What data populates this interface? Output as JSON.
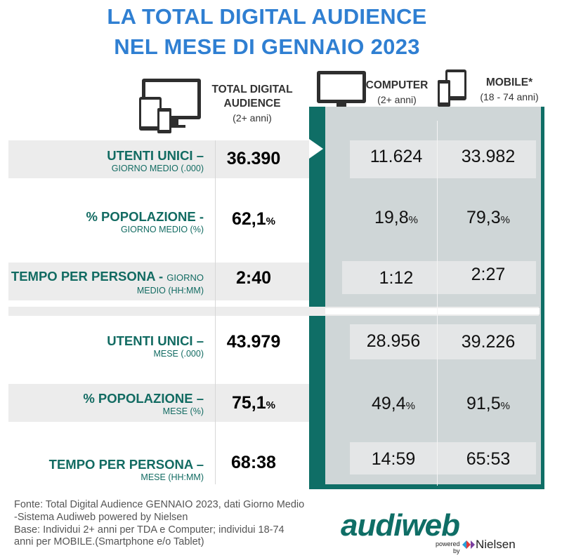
{
  "title_line1": "LA TOTAL DIGITAL AUDIENCE",
  "title_line2": "NEL MESE DI GENNAIO 2023",
  "columns": {
    "tda": {
      "main1": "TOTAL DIGITAL",
      "main2": "AUDIENCE",
      "sub": "(2+ anni)"
    },
    "computer": {
      "main": "COMPUTER",
      "sub": "(2+ anni)"
    },
    "mobile": {
      "main": "MOBILE*",
      "sub": "(18 - 74 anni)"
    }
  },
  "chart_data": {
    "type": "table",
    "title": "LA TOTAL DIGITAL AUDIENCE NEL MESE DI GENNAIO 2023",
    "columns": [
      "TOTAL DIGITAL AUDIENCE (2+ anni)",
      "COMPUTER (2+ anni)",
      "MOBILE* (18 - 74 anni)"
    ],
    "rows": [
      {
        "label": "UTENTI UNICI –",
        "sub": "GIORNO MEDIO (.000)",
        "total": "36.390",
        "computer": "11.624",
        "mobile": "33.982"
      },
      {
        "label": "% POPOLAZIONE -",
        "sub": "GIORNO MEDIO (%)",
        "total": "62,1",
        "computer": "19,8",
        "mobile": "79,3",
        "unit": "%"
      },
      {
        "label": "TEMPO PER PERSONA -",
        "label_suffix": "GIORNO",
        "sub": "MEDIO (HH:MM)",
        "total": "2:40",
        "computer": "1:12",
        "mobile": "2:27"
      },
      {
        "label": "UTENTI UNICI –",
        "sub": "MESE (.000)",
        "total": "43.979",
        "computer": "28.956",
        "mobile": "39.226"
      },
      {
        "label": "% POPOLAZIONE –",
        "sub": "MESE (%)",
        "total": "75,1",
        "computer": "49,4",
        "mobile": "91,5",
        "unit": "%"
      },
      {
        "label": "TEMPO PER PERSONA –",
        "sub": "MESE (HH:MM)",
        "total": "68:38",
        "computer": "14:59",
        "mobile": "65:53"
      }
    ]
  },
  "footer": {
    "line1": "Fonte: Total Digital Audience GENNAIO 2023, dati Giorno Medio",
    "line2": "-Sistema Audiweb powered by Nielsen",
    "line3": "Base:  Individui 2+ anni per TDA e Computer; individui 18-74",
    "line4": "anni per MOBILE.(Smartphone e/o Tablet)"
  },
  "logo": {
    "word": "audiweb",
    "powered1": "powered",
    "powered2": "by",
    "nielsen": "Nielsen"
  },
  "colors": {
    "title": "#2f7fd2",
    "accent_teal": "#0f6e66",
    "label": "#126b62",
    "panel": "#cfd6d7"
  }
}
